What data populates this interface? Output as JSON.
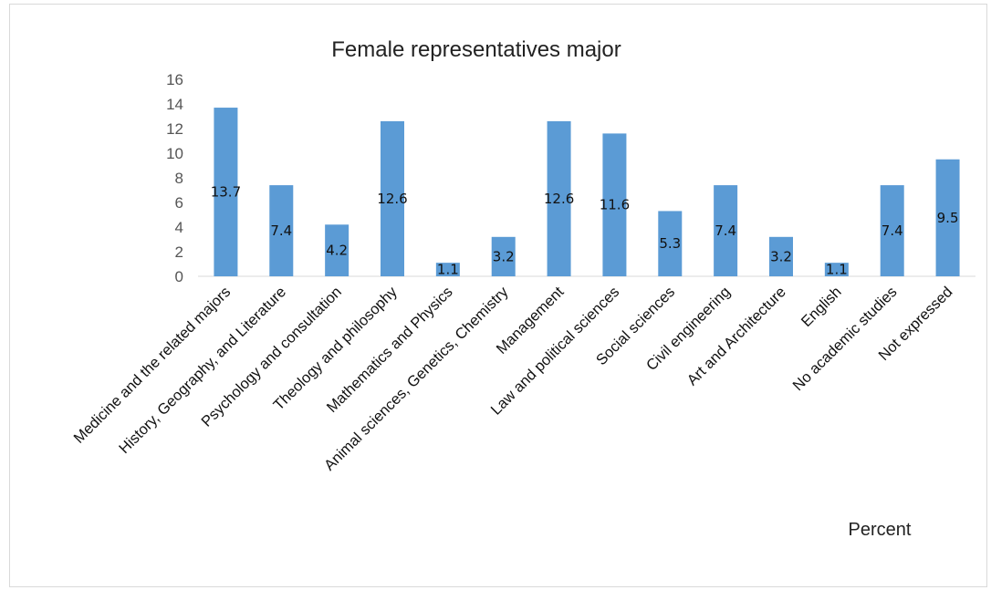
{
  "chart_data": {
    "type": "bar",
    "title": "Female representatives major",
    "xlabel": "Percent",
    "ylabel": "",
    "ylim": [
      0,
      16
    ],
    "yticks": [
      0,
      2,
      4,
      6,
      8,
      10,
      12,
      14,
      16
    ],
    "grid": false,
    "bar_color": "#5b9bd5",
    "categories": [
      "Medicine and the related majors",
      "History, Geography, and Literature",
      "Psychology and consultation",
      "Theology and philosophy",
      "Mathematics and Physics",
      "Animal sciences, Genetics, Chemistry",
      "Management",
      "Law and political  sciences",
      "Social sciences",
      "Civil engineering",
      "Art and Architecture",
      "English",
      "No academic studies",
      "Not expressed"
    ],
    "values": [
      13.7,
      7.4,
      4.2,
      12.6,
      1.1,
      3.2,
      12.6,
      11.6,
      5.3,
      7.4,
      3.2,
      1.1,
      7.4,
      9.5
    ],
    "value_labels": [
      "13.7",
      "7.4",
      "4.2",
      "12.6",
      "1.1",
      "3.2",
      "12.6",
      "11.6",
      "5.3",
      "7.4",
      "3.2",
      "1.1",
      "7.4",
      "9.5"
    ]
  }
}
